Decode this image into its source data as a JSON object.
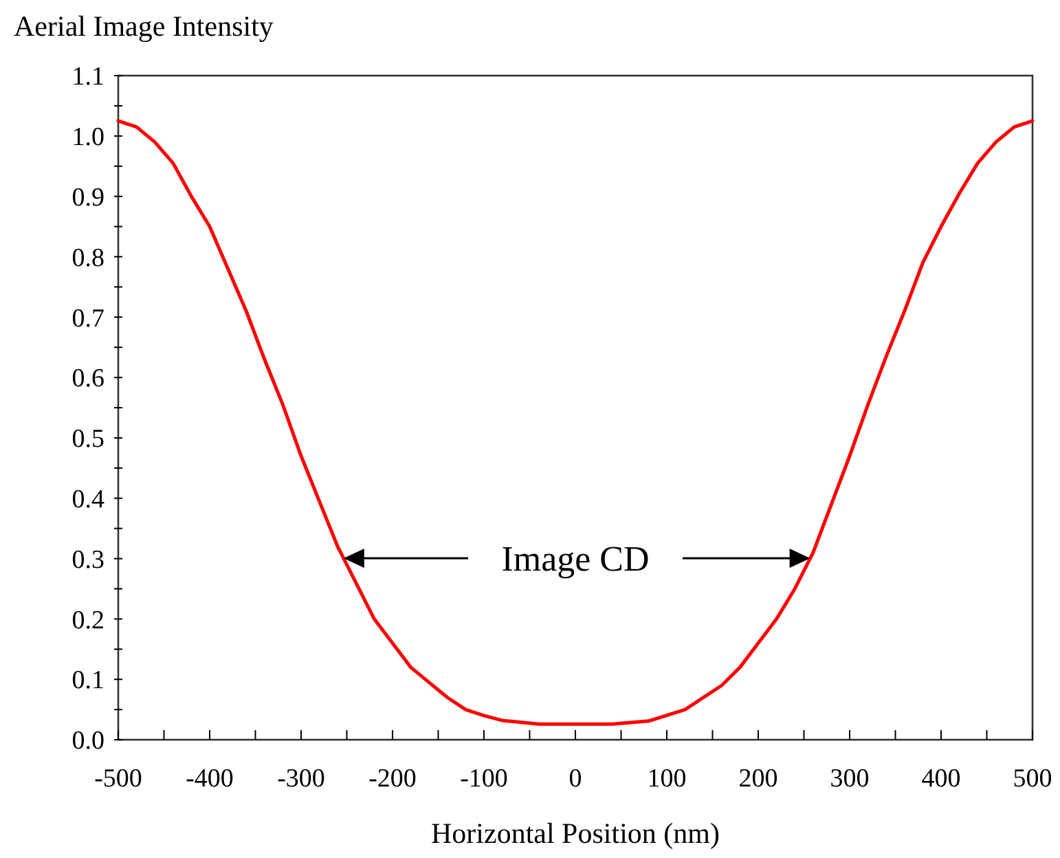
{
  "chart_data": {
    "type": "line",
    "ylabel": "Aerial Image Intensity",
    "xlabel": "Horizontal Position (nm)",
    "x": [
      -500,
      -480,
      -460,
      -440,
      -420,
      -400,
      -380,
      -360,
      -340,
      -320,
      -300,
      -280,
      -260,
      -240,
      -220,
      -200,
      -180,
      -160,
      -140,
      -120,
      -100,
      -80,
      -60,
      -40,
      0,
      40,
      80,
      120,
      160,
      180,
      200,
      220,
      240,
      260,
      280,
      300,
      320,
      340,
      360,
      380,
      400,
      420,
      440,
      460,
      480,
      500
    ],
    "series": [
      {
        "color": "#ff0000",
        "values": [
          1.025,
          1.015,
          0.99,
          0.955,
          0.9,
          0.85,
          0.78,
          0.71,
          0.63,
          0.555,
          0.47,
          0.395,
          0.32,
          0.26,
          0.2,
          0.16,
          0.12,
          0.095,
          0.07,
          0.05,
          0.04,
          0.032,
          0.029,
          0.026,
          0.026,
          0.026,
          0.031,
          0.05,
          0.09,
          0.12,
          0.16,
          0.2,
          0.25,
          0.31,
          0.39,
          0.47,
          0.555,
          0.635,
          0.71,
          0.79,
          0.85,
          0.905,
          0.955,
          0.99,
          1.015,
          1.025
        ]
      }
    ],
    "xlim": [
      -500,
      500
    ],
    "xticks": [
      -500,
      {
        "value": -450,
        "label": null
      },
      -400,
      {
        "value": -350,
        "label": null
      },
      -300,
      {
        "value": -250,
        "label": null
      },
      -200,
      {
        "value": -150,
        "label": null
      },
      -100,
      {
        "value": -50,
        "label": null
      },
      0,
      {
        "value": 50,
        "label": null
      },
      100,
      {
        "value": 150,
        "label": null
      },
      200,
      {
        "value": 250,
        "label": null
      },
      300,
      {
        "value": 350,
        "label": null
      },
      400,
      {
        "value": 450,
        "label": null
      },
      500
    ],
    "ylim": [
      0,
      1.1
    ],
    "yticks": [
      {
        "value": 0,
        "label": "0.0"
      },
      {
        "value": 0.05,
        "label": null
      },
      0.1,
      {
        "value": 0.15,
        "label": null
      },
      0.2,
      {
        "value": 0.25,
        "label": null
      },
      0.3,
      {
        "value": 0.35,
        "label": null
      },
      0.4,
      {
        "value": 0.45,
        "label": null
      },
      0.5,
      {
        "value": 0.55,
        "label": null
      },
      0.6,
      {
        "value": 0.65,
        "label": null
      },
      0.7,
      {
        "value": 0.75,
        "label": null
      },
      0.8,
      {
        "value": 0.85,
        "label": null
      },
      0.9,
      {
        "value": 0.95,
        "label": null
      },
      {
        "value": 1,
        "label": "1.0"
      },
      {
        "value": 1.05,
        "label": null
      },
      1.1
    ],
    "annotations": [
      "Image CD"
    ],
    "grid": false,
    "marker": "none",
    "line_style": "solid"
  }
}
